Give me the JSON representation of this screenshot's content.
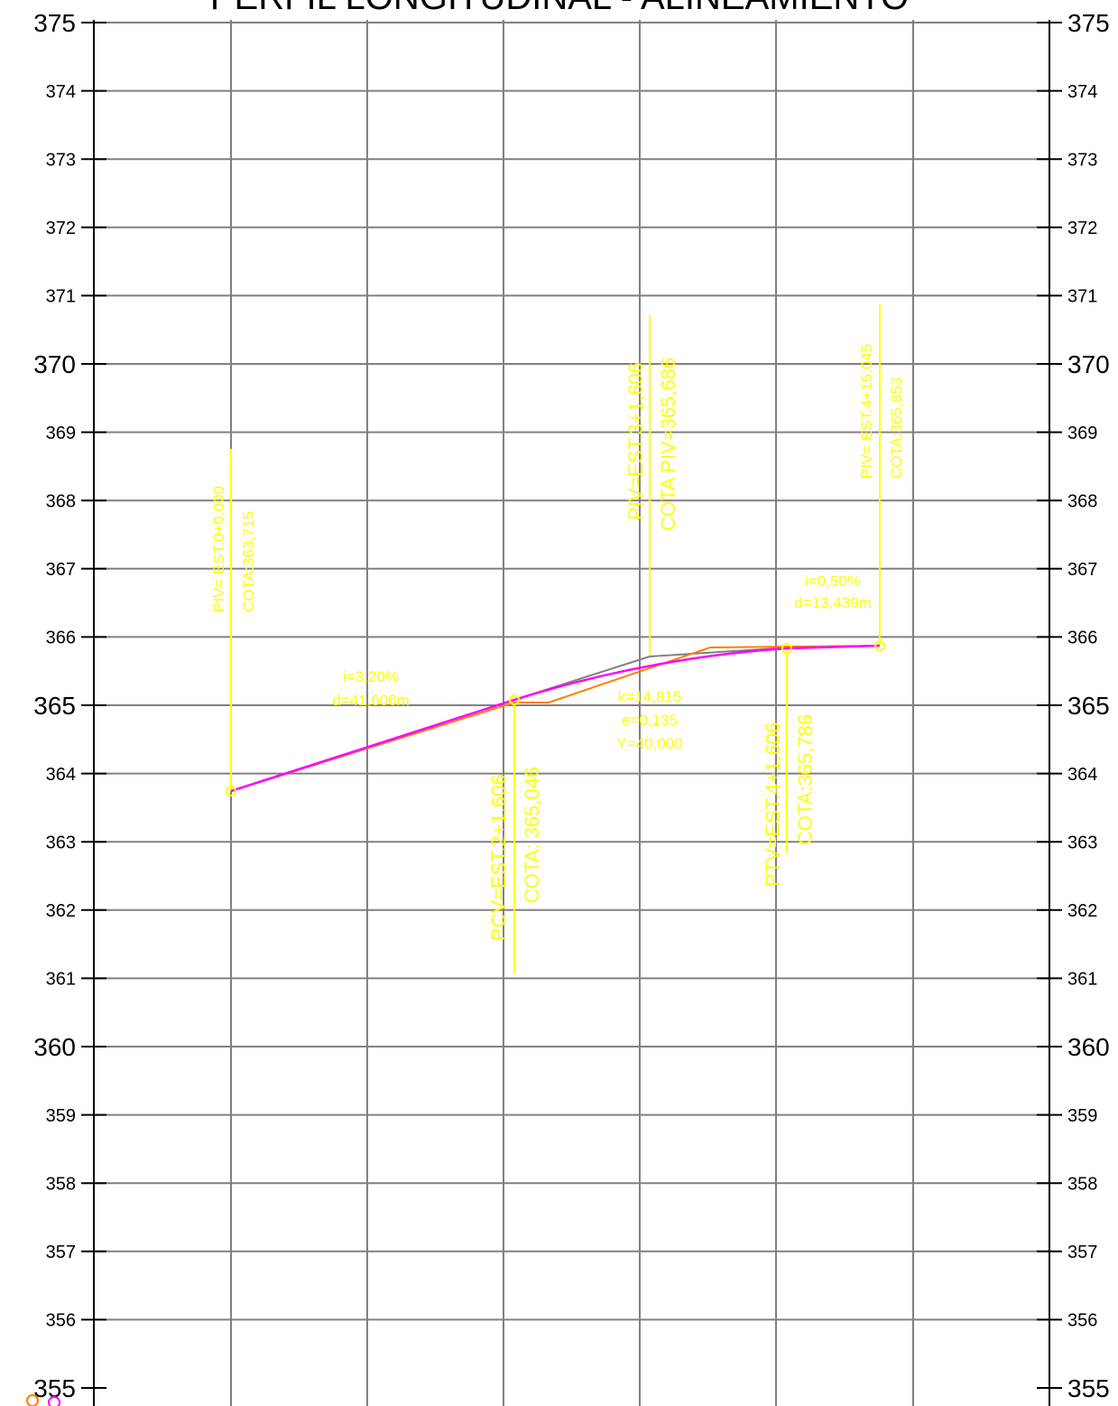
{
  "drawing": {
    "title_fragment": "PERFIL LONGITUDINAL - ALINEAMIENTO"
  },
  "axis": {
    "y_min": 355,
    "y_max": 375,
    "tick_labels": [
      "375",
      "374",
      "373",
      "372",
      "371",
      "370",
      "369",
      "368",
      "367",
      "366",
      "365",
      "364",
      "363",
      "362",
      "361",
      "360",
      "359",
      "358",
      "357",
      "356",
      "355"
    ],
    "major_ticks": [
      "375",
      "370",
      "365",
      "360",
      "355"
    ]
  },
  "colors": {
    "grid": "#808080",
    "frame": "#000000",
    "annotation": "#ffff00",
    "profile_final": "#ff00ff",
    "profile_alt": "#ff8000",
    "profile_tangent": "#808080"
  },
  "annotations": {
    "piv1_line1": "PIV= EST.0+0,000",
    "piv1_line2": "COTA:363,715",
    "slope1_i": "i=3,20%",
    "slope1_d": "d=41,606m",
    "pcv_line1": "PCV=EST.2+1,606",
    "pcv_line2": "COTA: 365,046",
    "piv2_line1": "PIV=EST.3+1,606",
    "piv2_line2": "COTA PIV=365,686",
    "curve_k": "k=14,815",
    "curve_e": "e=0,135",
    "curve_y": "Y=40,000",
    "ptv_line1": "PTV=EST.4+1,606",
    "ptv_line2": "COTA:365,786",
    "slope2_i": "i=0,50%",
    "slope2_d": "d=13,439m",
    "piv3_line1": "PIV= EST.4+15,045",
    "piv3_line2": "COTA:365,853"
  }
}
